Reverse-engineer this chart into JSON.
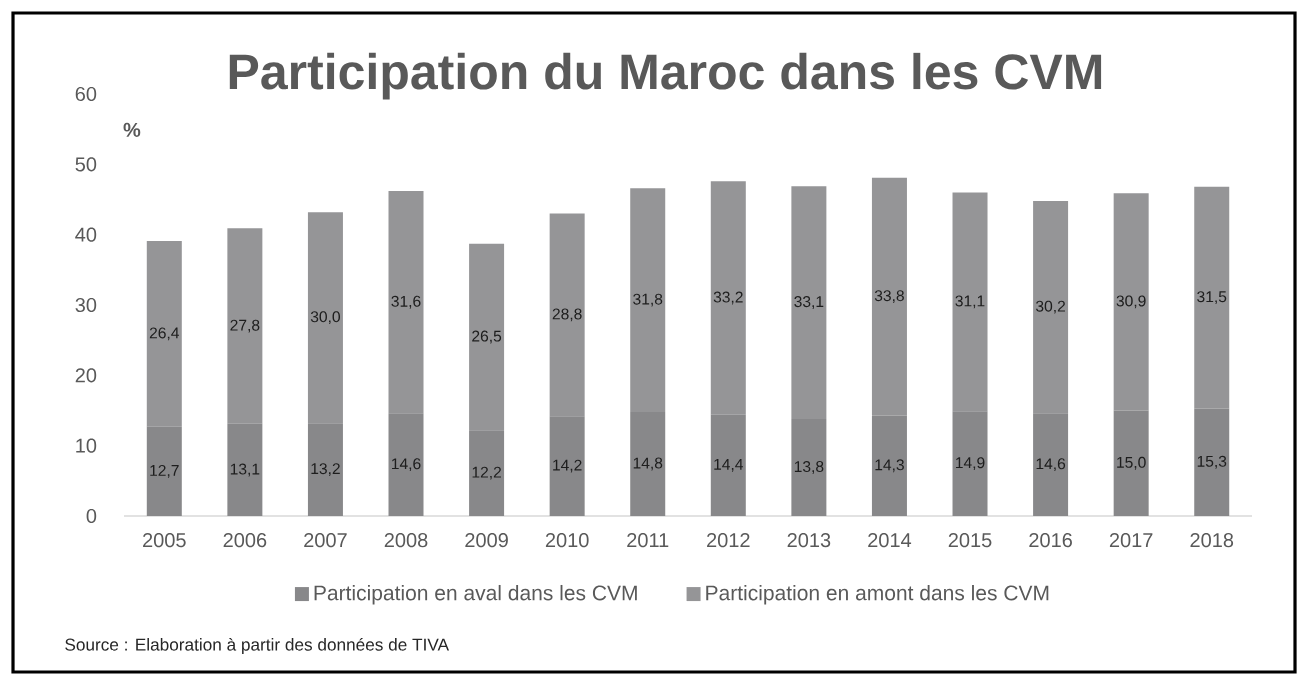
{
  "chart_data": {
    "type": "bar",
    "stacked": true,
    "title": "Participation du Maroc dans les CVM",
    "ylabel": "%",
    "categories": [
      "2005",
      "2006",
      "2007",
      "2008",
      "2009",
      "2010",
      "2011",
      "2012",
      "2013",
      "2014",
      "2015",
      "2016",
      "2017",
      "2018"
    ],
    "series": [
      {
        "name": "Participation en aval dans les CVM",
        "color": "#88888a",
        "values": [
          12.7,
          13.1,
          13.2,
          14.6,
          12.2,
          14.2,
          14.8,
          14.4,
          13.8,
          14.3,
          14.9,
          14.6,
          15.0,
          15.3
        ],
        "value_labels": [
          "12,7",
          "13,1",
          "13,2",
          "14,6",
          "12,2",
          "14,2",
          "14,8",
          "14,4",
          "13,8",
          "14,3",
          "14,9",
          "14,6",
          "15,0",
          "15,3"
        ]
      },
      {
        "name": "Participation en amont dans les CVM",
        "color": "#959597",
        "values": [
          26.4,
          27.8,
          30.0,
          31.6,
          26.5,
          28.8,
          31.8,
          33.2,
          33.1,
          33.8,
          31.1,
          30.2,
          30.9,
          31.5
        ],
        "value_labels": [
          "26,4",
          "27,8",
          "30,0",
          "31,6",
          "26,5",
          "28,8",
          "31,8",
          "33,2",
          "33,1",
          "33,8",
          "31,1",
          "30,2",
          "30,9",
          "31,5"
        ]
      }
    ],
    "ylim": [
      0,
      60
    ],
    "yticks": [
      0,
      10,
      20,
      30,
      40,
      50,
      60
    ],
    "legend": "bottom",
    "annotations": [
      "Source : Elaboration à partir des données de TIVA"
    ]
  }
}
